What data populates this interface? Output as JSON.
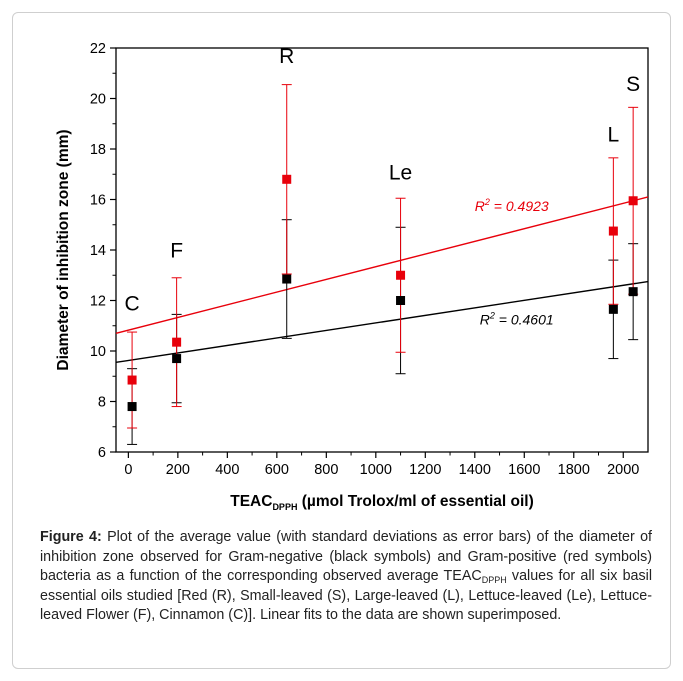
{
  "chart_data": {
    "type": "scatter",
    "title": "",
    "xlabel": "TEAC",
    "xlabel_sub": "DPPH",
    "xlabel_rest": " (µmol Trolox/ml of essential oil)",
    "ylabel": "Diameter of inhibition zone (mm)",
    "xlim": [
      -50,
      2100
    ],
    "ylim": [
      6,
      22
    ],
    "xticks": [
      0,
      200,
      400,
      600,
      800,
      1000,
      1200,
      1400,
      1600,
      1800,
      2000
    ],
    "yticks": [
      6,
      8,
      10,
      12,
      14,
      16,
      18,
      20,
      22
    ],
    "grid": false,
    "groups": [
      {
        "label": "C",
        "x": 15,
        "label_y": 11.6
      },
      {
        "label": "F",
        "x": 195,
        "label_y": 13.7
      },
      {
        "label": "R",
        "x": 640,
        "label_y": 21.4
      },
      {
        "label": "Le",
        "x": 1100,
        "label_y": 16.8
      },
      {
        "label": "L",
        "x": 1960,
        "label_y": 18.3
      },
      {
        "label": "S",
        "x": 2040,
        "label_y": 20.3
      }
    ],
    "series": [
      {
        "color": "#000000",
        "points": [
          {
            "x": 15,
            "y": 7.8,
            "err": 1.5
          },
          {
            "x": 195,
            "y": 9.7,
            "err": 1.75
          },
          {
            "x": 640,
            "y": 12.85,
            "err": 2.35
          },
          {
            "x": 1100,
            "y": 12.0,
            "err": 2.9
          },
          {
            "x": 1960,
            "y": 11.65,
            "err": 1.95
          },
          {
            "x": 2040,
            "y": 12.35,
            "err": 1.9
          }
        ],
        "fit": {
          "x0": -50,
          "y0": 9.55,
          "x1": 2100,
          "y1": 12.75
        },
        "r2_label": "R",
        "r2_sup": "2",
        "r2_value": " = 0.4601",
        "r2_x": 1420,
        "r2_y": 11.05
      },
      {
        "color": "#e8000b",
        "points": [
          {
            "x": 15,
            "y": 8.85,
            "err": 1.9
          },
          {
            "x": 195,
            "y": 10.35,
            "err": 2.55
          },
          {
            "x": 640,
            "y": 16.8,
            "err": 3.75
          },
          {
            "x": 1100,
            "y": 13.0,
            "err": 3.05
          },
          {
            "x": 1960,
            "y": 14.75,
            "err": 2.9
          },
          {
            "x": 2040,
            "y": 15.95,
            "err": 3.7
          }
        ],
        "fit": {
          "x0": -50,
          "y0": 10.7,
          "x1": 2100,
          "y1": 16.1
        },
        "r2_label": "R",
        "r2_sup": "2",
        "r2_value": " = 0.4923",
        "r2_x": 1400,
        "r2_y": 15.55
      }
    ]
  },
  "caption": {
    "figure_label": "Figure 4:",
    "text_part1": " Plot of the average value (with standard deviations as error bars) of the diameter of inhibition zone observed for Gram-negative (black symbols) and Gram-positive (red symbols) bacteria as a function of the corresponding observed average TEAC",
    "text_sub": "DPPH",
    "text_part2": " values for all six basil essential oils studied [Red (R), Small-leaved (S), Large-leaved (L), Lettuce-leaved (Le), Lettuce-leaved Flower (F), Cinnamon (C)]. Linear fits to the data are shown superimposed."
  }
}
